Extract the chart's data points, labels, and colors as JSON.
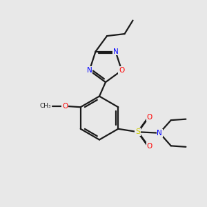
{
  "bg_color": "#e8e8e8",
  "bond_color": "#1a1a1a",
  "N_color": "#0000ff",
  "O_color": "#ff0000",
  "S_color": "#cccc00",
  "figsize": [
    3.0,
    3.0
  ],
  "dpi": 100,
  "lw": 1.6,
  "fs": 7.5,
  "xlim": [
    0,
    10
  ],
  "ylim": [
    0,
    10
  ]
}
